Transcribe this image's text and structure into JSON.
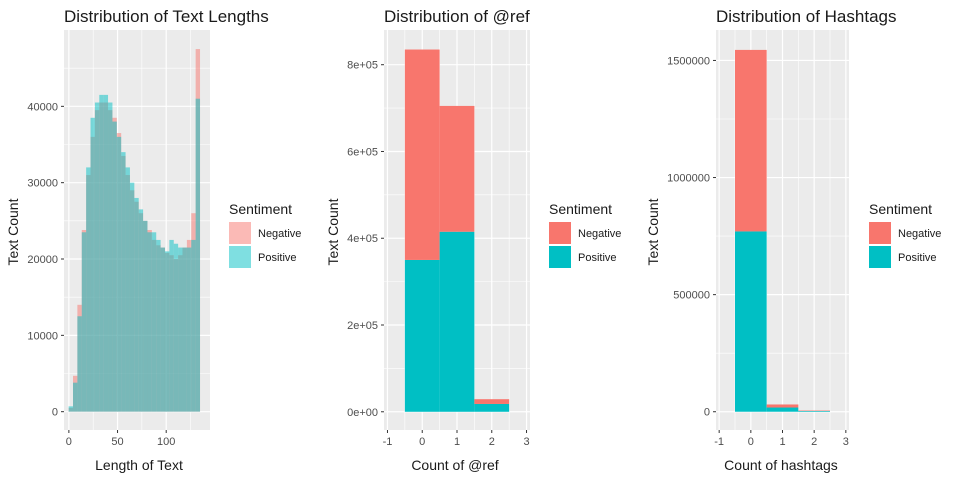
{
  "colors": {
    "negative": "#F8766D",
    "positive": "#00BFC4",
    "panel": "#EBEBEB",
    "grid": "#FFFFFF"
  },
  "chart_data": [
    {
      "type": "bar",
      "title": "Distribution of Text Lengths",
      "xlabel": "Length of Text",
      "ylabel": "Text Count",
      "xlim": [
        -5,
        145
      ],
      "ylim": [
        -2400,
        50000
      ],
      "xticks": [
        0,
        50,
        100
      ],
      "xtick_labels": [
        "0",
        "50",
        "100"
      ],
      "yticks": [
        0,
        10000,
        20000,
        30000,
        40000
      ],
      "ytick_labels": [
        "0",
        "10000",
        "20000",
        "30000",
        "40000"
      ],
      "bin_width": 4.5,
      "overlay": true,
      "alpha": 0.5,
      "x": [
        2,
        6.5,
        11,
        15.5,
        20,
        24.5,
        29,
        33.5,
        38,
        42.5,
        47,
        51.5,
        56,
        60.5,
        65,
        69.5,
        74,
        78.5,
        83,
        87.5,
        92,
        96.5,
        101,
        105.5,
        110,
        114.5,
        119,
        123.5,
        128,
        132.5
      ],
      "legend_title": "Sentiment",
      "legend_position": "right",
      "series": [
        {
          "name": "Negative",
          "color": "#F8766D",
          "values": [
            500,
            4700,
            14000,
            23800,
            31000,
            36000,
            39500,
            40500,
            40500,
            39500,
            38500,
            36500,
            33500,
            31000,
            29000,
            27500,
            26000,
            25000,
            23800,
            22500,
            21800,
            21500,
            20800,
            20500,
            20000,
            20500,
            21500,
            22500,
            26000,
            47500
          ]
        },
        {
          "name": "Positive",
          "color": "#00BFC4",
          "values": [
            700,
            3800,
            12500,
            23500,
            32000,
            38500,
            40500,
            41500,
            41500,
            40500,
            38000,
            36000,
            34000,
            32000,
            30000,
            28000,
            26500,
            25000,
            23500,
            23500,
            22500,
            21500,
            21000,
            22500,
            22000,
            21500,
            21500,
            21500,
            22500,
            41000
          ]
        }
      ]
    },
    {
      "type": "bar",
      "title": "Distribution of @ref",
      "xlabel": "Count of @ref",
      "ylabel": "Text Count",
      "xlim": [
        -1.1,
        3.1
      ],
      "ylim": [
        -42000,
        880000
      ],
      "xticks": [
        -1,
        0,
        1,
        2,
        3
      ],
      "xtick_labels": [
        "-1",
        "0",
        "1",
        "2",
        "3"
      ],
      "yticks": [
        0,
        200000,
        400000,
        600000,
        800000
      ],
      "ytick_labels": [
        "0e+00",
        "2e+05",
        "4e+05",
        "6e+05",
        "8e+05"
      ],
      "bin_width": 1,
      "stacked": true,
      "x": [
        0,
        1,
        2
      ],
      "legend_title": "Sentiment",
      "legend_position": "right",
      "series": [
        {
          "name": "Positive",
          "color": "#00BFC4",
          "values": [
            350000,
            415000,
            18000
          ]
        },
        {
          "name": "Negative",
          "color": "#F8766D",
          "values": [
            485000,
            290000,
            11000
          ]
        }
      ]
    },
    {
      "type": "bar",
      "title": "Distribution of Hashtags",
      "xlabel": "Count of hashtags",
      "ylabel": "Text Count",
      "xlim": [
        -1.1,
        3.1
      ],
      "ylim": [
        -78000,
        1630000
      ],
      "xticks": [
        -1,
        0,
        1,
        2,
        3
      ],
      "xtick_labels": [
        "-1",
        "0",
        "1",
        "2",
        "3"
      ],
      "yticks": [
        0,
        500000,
        1000000,
        1500000
      ],
      "ytick_labels": [
        "0",
        "500000",
        "1000000",
        "1500000"
      ],
      "bin_width": 1,
      "stacked": true,
      "x": [
        0,
        1,
        2
      ],
      "legend_title": "Sentiment",
      "legend_position": "right",
      "series": [
        {
          "name": "Positive",
          "color": "#00BFC4",
          "values": [
            770000,
            18000,
            3000
          ]
        },
        {
          "name": "Negative",
          "color": "#F8766D",
          "values": [
            775000,
            13000,
            2000
          ]
        }
      ]
    }
  ]
}
